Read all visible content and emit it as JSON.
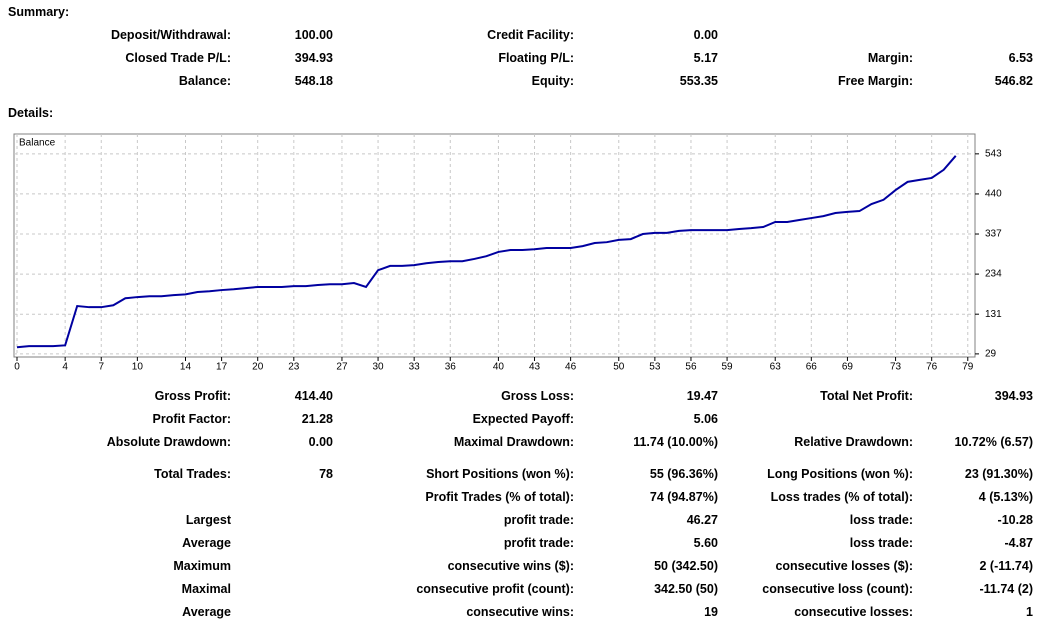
{
  "summary": {
    "title": "Summary:",
    "rows": [
      [
        {
          "label": "Deposit/Withdrawal:",
          "value": "100.00"
        },
        {
          "label": "Credit Facility:",
          "value": "0.00"
        },
        null
      ],
      [
        {
          "label": "Closed Trade P/L:",
          "value": "394.93"
        },
        {
          "label": "Floating P/L:",
          "value": "5.17"
        },
        {
          "label": "Margin:",
          "value": "6.53"
        }
      ],
      [
        {
          "label": "Balance:",
          "value": "548.18"
        },
        {
          "label": "Equity:",
          "value": "553.35"
        },
        {
          "label": "Free Margin:",
          "value": "546.82"
        }
      ]
    ]
  },
  "details": {
    "title": "Details:",
    "rows": [
      [
        {
          "label": "Gross Profit:",
          "value": "414.40"
        },
        {
          "label": "Gross Loss:",
          "value": "19.47"
        },
        {
          "label": "Total Net Profit:",
          "value": "394.93"
        }
      ],
      [
        {
          "label": "Profit Factor:",
          "value": "21.28"
        },
        {
          "label": "Expected Payoff:",
          "value": "5.06"
        },
        null
      ],
      [
        {
          "label": "Absolute Drawdown:",
          "value": "0.00"
        },
        {
          "label": "Maximal Drawdown:",
          "value": "11.74 (10.00%)"
        },
        {
          "label": "Relative Drawdown:",
          "value": "10.72% (6.57)"
        }
      ],
      [
        {
          "label": "Total Trades:",
          "value": "78"
        },
        {
          "label": "Short Positions (won %):",
          "value": "55 (96.36%)"
        },
        {
          "label": "Long Positions (won %):",
          "value": "23 (91.30%)"
        }
      ],
      [
        null,
        {
          "label": "Profit Trades (% of total):",
          "value": "74 (94.87%)"
        },
        {
          "label": "Loss trades (% of total):",
          "value": "4 (5.13%)"
        }
      ],
      [
        {
          "label": "Largest"
        },
        {
          "label": "profit trade:",
          "value": "46.27"
        },
        {
          "label": "loss trade:",
          "value": "-10.28"
        }
      ],
      [
        {
          "label": "Average"
        },
        {
          "label": "profit trade:",
          "value": "5.60"
        },
        {
          "label": "loss trade:",
          "value": "-4.87"
        }
      ],
      [
        {
          "label": "Maximum"
        },
        {
          "label": "consecutive wins ($):",
          "value": "50 (342.50)"
        },
        {
          "label": "consecutive losses ($):",
          "value": "2 (-11.74)"
        }
      ],
      [
        {
          "label": "Maximal"
        },
        {
          "label": "consecutive profit (count):",
          "value": "342.50 (50)"
        },
        {
          "label": "consecutive loss (count):",
          "value": "-11.74 (2)"
        }
      ],
      [
        {
          "label": "Average"
        },
        {
          "label": "consecutive wins:",
          "value": "19"
        },
        {
          "label": "consecutive losses:",
          "value": "1"
        }
      ]
    ]
  },
  "chart_data": {
    "type": "line",
    "label": "Balance",
    "color": "#0000a0",
    "grid": true,
    "x": [
      0,
      1,
      2,
      3,
      4,
      5,
      6,
      7,
      8,
      9,
      10,
      11,
      12,
      13,
      14,
      15,
      16,
      17,
      18,
      19,
      20,
      21,
      22,
      23,
      24,
      25,
      26,
      27,
      28,
      29,
      30,
      31,
      32,
      33,
      34,
      35,
      36,
      37,
      38,
      39,
      40,
      41,
      42,
      43,
      44,
      45,
      46,
      47,
      48,
      49,
      50,
      51,
      52,
      53,
      54,
      55,
      56,
      57,
      58,
      59,
      60,
      61,
      62,
      63,
      64,
      65,
      66,
      67,
      68,
      69,
      70,
      71,
      72,
      73,
      74,
      75,
      76,
      77,
      78
    ],
    "values": [
      46,
      49,
      49,
      49,
      51,
      152,
      149,
      149,
      154,
      172,
      175,
      177,
      177,
      180,
      182,
      188,
      190,
      193,
      195,
      198,
      201,
      201,
      201,
      203,
      203,
      206,
      208,
      208,
      211,
      201,
      244,
      255,
      255,
      257,
      262,
      265,
      267,
      267,
      273,
      280,
      291,
      296,
      296,
      298,
      301,
      301,
      301,
      306,
      314,
      316,
      322,
      324,
      337,
      340,
      340,
      345,
      347,
      347,
      347,
      347,
      350,
      352,
      355,
      368,
      368,
      373,
      378,
      383,
      391,
      394,
      396,
      414,
      425,
      450,
      471,
      476,
      481,
      502,
      538
    ],
    "xlim": [
      -0.25,
      79.6
    ],
    "xticks": [
      0,
      4,
      7,
      10,
      14,
      17,
      20,
      23,
      27,
      30,
      33,
      36,
      40,
      43,
      46,
      50,
      53,
      56,
      59,
      63,
      66,
      69,
      73,
      76,
      79
    ],
    "ylim": [
      21,
      594
    ],
    "yticks": [
      29,
      131,
      234,
      337,
      440,
      543
    ]
  }
}
